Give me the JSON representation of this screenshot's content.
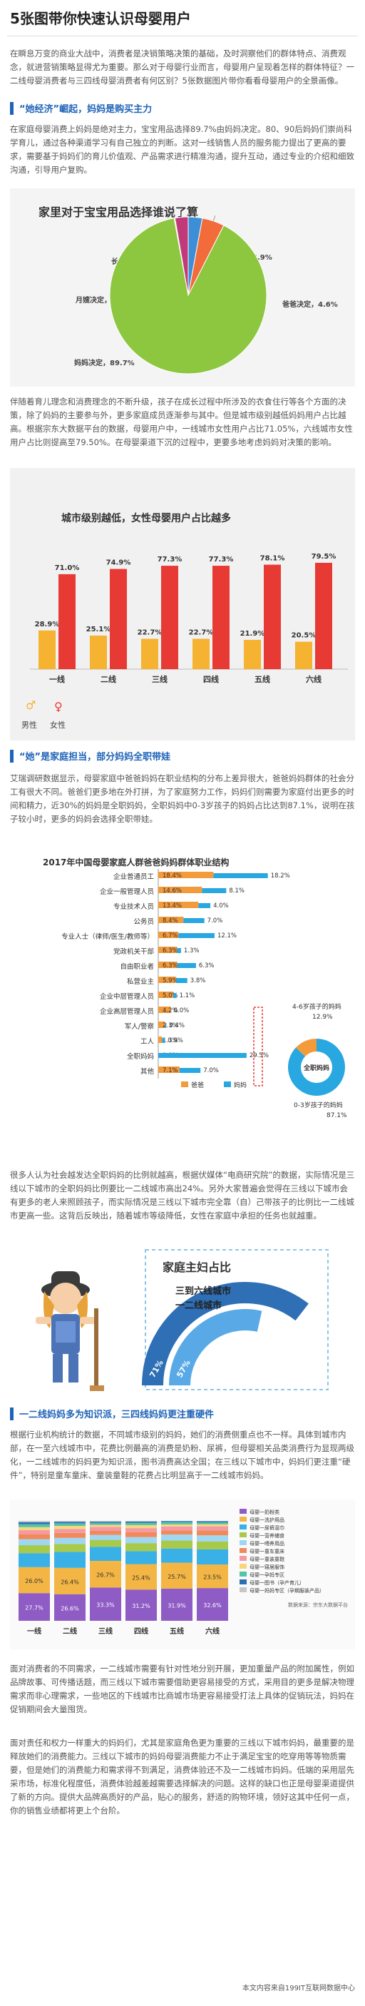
{
  "title": "5张图带你快速认识母婴用户",
  "intro": "在瞬息万变的商业大战中，消费者是决销策略决策的基础，及时洞察他们的群体特点、消费观念，就进营销策略显得尤为重要。那么对于母婴行业而言，母婴用户呈现着怎样的群体特征？一二线母婴消费者与三四线母婴消费者有何区别？5张数据图片带你看看母婴用户的全景画像。",
  "sections": [
    {
      "heading": "“她经济”崛起，妈妈是购买主力",
      "p1": "在家庭母婴消费上妈妈是绝对主力，宝宝用品选择89.7%由妈妈决定。80、90后妈妈们崇尚科学育儿，通过各种渠道学习有自己独立的判断。这对一线销售人员的服务能力提出了更高的要求，需要基于妈妈们的育儿价值观、产品需求进行精准沟通，提升互动，通过专业的介绍和细致沟通，引导用户复购。",
      "p2": "伴随着育儿理念和消费理念的不断升级，孩子在成长过程中所涉及的衣食住行等各个方面的决策，除了妈妈的主要参与外，更多家庭成员逐渐参与其中。但是城市级别越低妈妈用户占比越高。根据宗东大数据平台的数据，母婴用户中，一线城市女性用户占比71.05%，六线城市女性用户占比则提高至79.50%。在母婴渠道下沉的过程中，更要多地考虑妈妈对决策的影响。"
    },
    {
      "heading": "“她”是家庭担当，部分妈妈全职带娃",
      "p1": "艾瑞调研数据显示，母婴家庭中爸爸妈妈在职业结构的分布上差异很大，爸爸妈妈群体的社会分工有很大不同。爸爸们更多地在外打拼，为了家庭努力工作，妈妈们则需要为家庭付出更多的时间和精力，近30%的妈妈是全职妈妈，全职妈妈中0-3岁孩子的妈妈占比达到87.1%，说明在孩子较小时，更多的妈妈会选择全职带娃。",
      "p2": "很多人认为社会越发达全职妈妈的比例就越高，根据伏媒体“电商研究院”的数据，实际情况是三线以下城市的全职妈妈比例要比一二线城市高出24%。另外大家普遍会觉得在三线以下城市会有更多的老人来照顾孩子，而实际情况是三线以下城市完全靠（自）己带孩子的比例比一二线城市更高一些。这背后反映出，随着城市等级降低，女性在家庭中承担的任务也就越重。"
    },
    {
      "heading": "一二线妈妈多为知识派，三四线妈妈更注重硬件",
      "p1": "根据行业机构统计的数据，不同城市级别的妈妈，她们的消费侧重点也不一样。具体到城市内部，在一至六线城市中，花费比例最高的消费是奶粉、尿裤，但母婴相关品类消费行为显现两级化，一二线城市的妈妈更为知识派，图书消费高达全国；在三线以下城市中，妈妈们更注重“硬件”，特别是童车童床、童装童鞋的花费占比明显高于一二线城市妈妈。",
      "p2": "面对消费者的不同需求，一二线城市需要有针对性地分别开展，更加重量产品的附加属性，例如品牌故事、可传播话题，而三线以下城市需要借助更容易接受的方式，采用目的更多是解决物理需求而非心理需求，一些地区的下线城市比商城市场更容易接受打法上具体的促销玩法，妈妈在促销期间会大量囤货。",
      "p3": "面对责任和权力一样重大的妈妈们，尤其是家庭角色更为重要的三线以下城市妈妈，最重要的是释放她们的消费能力。三线以下城市的妈妈母婴消费能力不止于满足宝宝的吃穿用等等物质需要，但是她们的消费能力和需求得不到满足，消费体验还不及一二线城市妈妈。低端的采用层先采市场，标准化程度低，消费体验越差越需要选择解决的问题。这样的缺口也正是母婴渠道提供了新的方向。提供大品牌高质好的产品，贴心的服务，舒适的购物环境，领好这其中任何一点，你的销售业绩都将更上个台阶。"
    }
  ],
  "charts": {
    "pie": {
      "title": "家里对于宝宝用品选择谁说了算",
      "chart_data": {
        "type": "pie",
        "slices": [
          {
            "label": "妈妈决定",
            "value": 89.7,
            "value_label": "89.7%",
            "color": "#8dc63f"
          },
          {
            "label": "爸爸决定",
            "value": 4.6,
            "value_label": "4.6%",
            "color": "#f26b3a"
          },
          {
            "label": "其他",
            "value": 2.9,
            "value_label": "2.9%",
            "color": "#3c8fd6"
          },
          {
            "label": "月嫂决定",
            "value": 0.2,
            "value_label": "0.2%",
            "color": "#f9c22e"
          },
          {
            "label": "长辈家长决定",
            "value": 2.7,
            "value_label": "2.7%",
            "color": "#c03a7a"
          }
        ]
      }
    },
    "city": {
      "title": "城市级别越低，女性母婴用户占比越多",
      "legend": {
        "male": "男性",
        "female": "女性"
      },
      "chart_data": {
        "type": "bar",
        "categories": [
          "一线",
          "二线",
          "三线",
          "四线",
          "五线",
          "六线"
        ],
        "series": [
          {
            "name": "男性",
            "color": "#f5b331",
            "values": [
              28.9,
              25.1,
              22.7,
              22.7,
              21.9,
              20.5
            ]
          },
          {
            "name": "女性",
            "color": "#e83a35",
            "values": [
              71.0,
              74.9,
              77.3,
              77.3,
              78.1,
              79.5
            ]
          }
        ],
        "value_labels": [
          [
            "28.9%",
            "71.0%"
          ],
          [
            "25.1%",
            "74.9%"
          ],
          [
            "22.7%",
            "77.3%"
          ],
          [
            "22.7%",
            "77.3%"
          ],
          [
            "21.9%",
            "78.1%"
          ],
          [
            "20.5%",
            "79.5%"
          ]
        ]
      }
    },
    "job": {
      "title": "2017年中国母婴家庭人群爸爸妈妈群体职业结构",
      "legend": {
        "dad": "爸爸",
        "mom": "妈妈"
      },
      "chart_data": {
        "type": "bar",
        "orientation": "horizontal",
        "categories": [
          "企业普通员工",
          "企业一般管理人员",
          "专业技术人员",
          "公务员",
          "专业人士（律师/医生/教师等）",
          "党政机关干部",
          "自由职业者",
          "私营业主",
          "企业中层管理人员",
          "企业高层管理人员",
          "军人/警察",
          "工人",
          "全职妈妈",
          "其他"
        ],
        "series": [
          {
            "name": "爸爸",
            "color": "#f39a3b",
            "values": [
              18.4,
              14.6,
              13.4,
              8.4,
              6.7,
              6.3,
              6.3,
              5.9,
              5.0,
              4.2,
              2.3,
              1.3,
              0.0,
              7.1
            ]
          },
          {
            "name": "妈妈",
            "color": "#29a7e1",
            "values": [
              18.2,
              8.1,
              4.0,
              7.0,
              12.1,
              1.3,
              6.3,
              3.8,
              1.1,
              0.0,
              0.4,
              0.9,
              29.5,
              7.0
            ]
          }
        ],
        "dad_labels": [
          "18.4%",
          "14.6%",
          "13.4%",
          "8.4%",
          "6.7%",
          "6.3%",
          "6.3%",
          "5.9%",
          "5.0%",
          "4.2%",
          "2.3%",
          "1.3%",
          "0.0%",
          "7.1%"
        ],
        "mom_labels": [
          "18.2%",
          "8.1%",
          "4.0%",
          "7.0%",
          "12.1%",
          "1.3%",
          "6.3%",
          "3.8%",
          "1.1%",
          "0.0%",
          "0.4%",
          "0.9%",
          "29.5%",
          "7.0%"
        ],
        "inset": {
          "title": "全职妈妈",
          "slices": [
            {
              "label": "0-3岁孩子的妈妈",
              "value": 87.1,
              "value_label": "87.1%",
              "color": "#29a7e1"
            },
            {
              "label": "4-6岁孩子的妈妈",
              "value": 12.9,
              "value_label": "12.9%",
              "color": "#f39a3b"
            }
          ]
        }
      }
    },
    "housewife": {
      "title": "家庭主妇占比",
      "labels": [
        "三到六线城市",
        "一二线城市"
      ],
      "chart_data": {
        "type": "pie",
        "rings": [
          {
            "label": "三到六线城市",
            "value": 71
          },
          {
            "label": "一二线城市",
            "value": 57
          }
        ],
        "value_labels": [
          "71%",
          "57%"
        ]
      }
    },
    "spend": {
      "legend": [
        "母婴一奶粉类",
        "母婴一洗护用品",
        "母婴一尿裤湿巾",
        "母婴一营养辅食",
        "母婴一喂养用品",
        "母婴一童车童床",
        "母婴一童装童鞋",
        "母婴一寝居服饰",
        "母婴一孕妈专区",
        "母婴一图书（孕产育儿）",
        "母婴一妈妈专区（孕期服装产品）"
      ],
      "chart_data": {
        "type": "bar",
        "stacked": true,
        "categories": [
          "一线",
          "二线",
          "三线",
          "四线",
          "五线",
          "六线"
        ],
        "series": [
          {
            "name": "母婴一奶粉类",
            "color": "#8e5cc4",
            "values": [
              27.7,
              26.6,
              33.3,
              31.2,
              31.9,
              32.6
            ]
          },
          {
            "name": "母婴一洗护用品",
            "color": "#f3b544",
            "values": [
              26.0,
              26.4,
              26.7,
              25.4,
              25.7,
              23.5
            ]
          },
          {
            "name": "母婴一尿裤湿巾",
            "color": "#39b0e6",
            "values": [
              14.0,
              16.0,
              14.0,
              13.0,
              14.0,
              15.0
            ]
          },
          {
            "name": "母婴一营养辅食",
            "color": "#a7c94c",
            "values": [
              8.0,
              8.0,
              7.0,
              8.0,
              8.0,
              8.0
            ]
          },
          {
            "name": "母婴一喂养用品",
            "color": "#9fd7f2",
            "values": [
              6.0,
              6.0,
              5.0,
              6.0,
              6.0,
              6.0
            ]
          },
          {
            "name": "母婴一童车童床",
            "color": "#f08a5b",
            "values": [
              5.0,
              5.0,
              4.0,
              5.0,
              4.0,
              5.0
            ]
          },
          {
            "name": "母婴一童装童鞋",
            "color": "#f49aa6",
            "values": [
              4.0,
              4.0,
              4.0,
              4.0,
              4.0,
              4.0
            ]
          },
          {
            "name": "母婴一寝居服饰",
            "color": "#f8d77c",
            "values": [
              3.0,
              3.0,
              2.0,
              3.0,
              2.0,
              2.0
            ]
          },
          {
            "name": "母婴一孕妈专区",
            "color": "#55c3a8",
            "values": [
              3.0,
              2.6,
              2.0,
              2.4,
              2.4,
              2.0
            ]
          },
          {
            "name": "母婴一图书（孕产育儿）",
            "color": "#2b6fb6",
            "values": [
              2.0,
              1.5,
              1.2,
              1.2,
              1.0,
              1.1
            ]
          },
          {
            "name": "母婴一妈妈专区（孕期服装产品）",
            "color": "#c6c6c6",
            "values": [
              1.3,
              0.9,
              0.8,
              0.6,
              0.1,
              0.3
            ]
          }
        ],
        "top_labels": [
          "27.7%",
          "26.6%",
          "33.3%",
          "31.2%",
          "31.9%",
          "32.6%"
        ],
        "second_labels": [
          "26.0%",
          "26.4%",
          "26.7%",
          "25.4%",
          "25.7%",
          "23.5%"
        ],
        "source": "数据来源：宗东大数据平台"
      }
    }
  },
  "footer": "本文内容来自199IT互联网数据中心"
}
